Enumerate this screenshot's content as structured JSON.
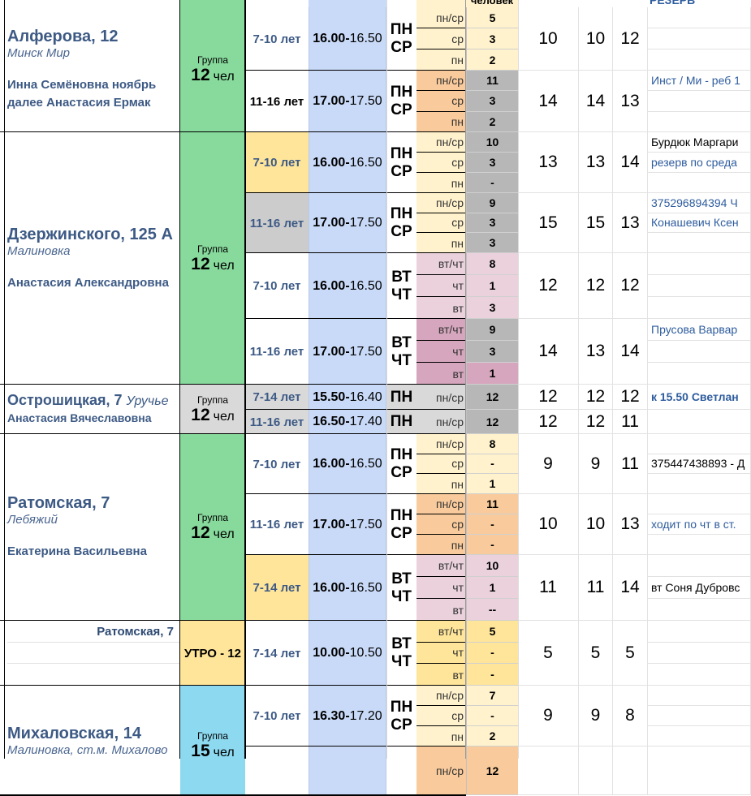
{
  "header": {
    "count_header": "человек",
    "reserve_header": "РЕЗЕРВ"
  },
  "group_label": "Группа",
  "people_suffix": "чел",
  "blocks": [
    {
      "title": "Алферова, 12",
      "title_extra": "",
      "subtitle": "Минск Мир",
      "teacher": [
        "Инна Семёновна ноябрь",
        "далее Анастасия Ермак"
      ],
      "group": {
        "type": "count",
        "size": "12",
        "color": "#87d99c"
      },
      "subgroups": [
        {
          "age": "7-10 лет",
          "age_bg": "#ffffff",
          "age_black": false,
          "time_start": "16.00-",
          "time_end": "16.50",
          "days": [
            "ПН",
            "СР"
          ],
          "rows": [
            {
              "label": "пн/ср",
              "count": "5"
            },
            {
              "label": "ср",
              "count": "3"
            },
            {
              "label": "пн",
              "count": "2"
            }
          ],
          "label_bg": "#fff2cc",
          "count_bg": [
            "#fff2cc",
            "#fff2cc",
            "#fff2cc"
          ],
          "totals": [
            "10",
            "10",
            "12"
          ],
          "notes": [
            "",
            "",
            ""
          ]
        },
        {
          "age": "11-16 лет",
          "age_bg": "#ffffff",
          "age_black": true,
          "time_start": "17.00-",
          "time_end": "17.50",
          "days": [
            "ПН",
            "СР"
          ],
          "rows": [
            {
              "label": "пн/ср",
              "count": "11"
            },
            {
              "label": "ср",
              "count": "3"
            },
            {
              "label": "пн",
              "count": "2"
            }
          ],
          "label_bg": "#f9cb9c",
          "count_bg": [
            "#b7b7b7",
            "#b7b7b7",
            "#b7b7b7"
          ],
          "totals": [
            "14",
            "14",
            "13"
          ],
          "notes": [
            "Инст / Ми - реб 1",
            "",
            ""
          ]
        }
      ]
    },
    {
      "title": "Дзержинского, 125 А",
      "title_extra": "",
      "subtitle": "Малиновка",
      "teacher": [
        "Анастасия Александровна"
      ],
      "group": {
        "type": "count",
        "size": "12",
        "color": "#87d99c"
      },
      "subgroups": [
        {
          "age": "7-10 лет",
          "age_bg": "#ffe599",
          "age_black": false,
          "time_start": "16.00-",
          "time_end": "16.50",
          "days": [
            "ПН",
            "СР"
          ],
          "rows": [
            {
              "label": "пн/ср",
              "count": "10"
            },
            {
              "label": "ср",
              "count": "3"
            },
            {
              "label": "пн",
              "count": "-"
            }
          ],
          "label_bg": "#fff2cc",
          "count_bg": [
            "#b7b7b7",
            "#b7b7b7",
            "#b7b7b7"
          ],
          "totals": [
            "13",
            "13",
            "14"
          ],
          "notes": [
            "Бурдюк Маргари",
            " резерв по среда",
            ""
          ]
        },
        {
          "age": "11-16 лет",
          "age_bg": "#cccccc",
          "age_black": false,
          "time_start": "17.00-",
          "time_end": "17.50",
          "days": [
            "ПН",
            "СР"
          ],
          "rows": [
            {
              "label": "пн/ср",
              "count": "9"
            },
            {
              "label": "ср",
              "count": "3"
            },
            {
              "label": "пн",
              "count": "3"
            }
          ],
          "label_bg": "#fff2cc",
          "count_bg": [
            "#b7b7b7",
            "#b7b7b7",
            "#b7b7b7"
          ],
          "totals": [
            "15",
            "15",
            "13"
          ],
          "notes": [
            "375296894394 Ч",
            "Конашевич Ксен",
            ""
          ]
        },
        {
          "age": "7-10 лет",
          "age_bg": "#ffffff",
          "age_black": false,
          "time_start": "16.00-",
          "time_end": "16.50",
          "days": [
            "ВТ",
            "ЧТ"
          ],
          "rows": [
            {
              "label": "вт/чт",
              "count": "8"
            },
            {
              "label": "чт",
              "count": "1"
            },
            {
              "label": "вт",
              "count": "3"
            }
          ],
          "label_bg": "#ead1dc",
          "count_bg": [
            "#ead1dc",
            "#ead1dc",
            "#ead1dc"
          ],
          "totals": [
            "12",
            "12",
            "12"
          ],
          "notes": [
            "",
            "",
            ""
          ]
        },
        {
          "age": "11-16 лет",
          "age_bg": "#ffffff",
          "age_black": false,
          "time_start": "17.00-",
          "time_end": "17.50",
          "days": [
            "ВТ",
            "ЧТ"
          ],
          "rows": [
            {
              "label": "вт/чт",
              "count": "9"
            },
            {
              "label": "чт",
              "count": "3"
            },
            {
              "label": "вт",
              "count": "1"
            }
          ],
          "label_bg": "#d5a6bd",
          "count_bg": [
            "#b7b7b7",
            "#b7b7b7",
            "#d5a6bd"
          ],
          "totals": [
            "14",
            "13",
            "14"
          ],
          "notes": [
            " Прусова Варвар",
            "",
            ""
          ]
        }
      ]
    },
    {
      "title": "Острошицкая, 7",
      "title_extra": "Уручье",
      "subtitle": "",
      "teacher": [
        "Анастасия Вячеславовна"
      ],
      "group": {
        "type": "count",
        "size": "12",
        "color": "#d9d9d9"
      },
      "subgroups": [
        {
          "age": "7-14 лет",
          "age_bg": "#d9d9d9",
          "age_black": false,
          "time_start": "15.50-",
          "time_end": "16.40",
          "days": [
            "ПН"
          ],
          "rows": [
            {
              "label": "пн/ср",
              "count": "12"
            }
          ],
          "label_bg": "#d9d9d9",
          "count_bg": [
            "#b7b7b7"
          ],
          "totals": [
            "12",
            "12",
            "12"
          ],
          "notes": [
            "к 15.50 Светлан"
          ],
          "note_bold": true
        },
        {
          "age": "11-16 лет",
          "age_bg": "#d9d9d9",
          "age_black": false,
          "time_start": "16.50-",
          "time_end": "17.40",
          "days": [
            "ПН"
          ],
          "rows": [
            {
              "label": "пн/ср",
              "count": "12"
            }
          ],
          "label_bg": "#d9d9d9",
          "count_bg": [
            "#b7b7b7"
          ],
          "totals": [
            "12",
            "12",
            "11"
          ],
          "notes": [
            ""
          ]
        }
      ]
    },
    {
      "title": "Ратомская, 7",
      "title_extra": "",
      "subtitle": "Лебяжий",
      "teacher": [
        "Екатерина Васильевна"
      ],
      "group": {
        "type": "count",
        "size": "12",
        "color": "#87d99c"
      },
      "subgroups": [
        {
          "age": "7-10 лет",
          "age_bg": "#ffffff",
          "age_black": false,
          "time_start": "16.00-",
          "time_end": "16.50",
          "days": [
            "ПН",
            "СР"
          ],
          "rows": [
            {
              "label": "пн/ср",
              "count": "8"
            },
            {
              "label": "ср",
              "count": "-"
            },
            {
              "label": "пн",
              "count": "1"
            }
          ],
          "label_bg": "#fff2cc",
          "count_bg": [
            "#fff2cc",
            "#fff2cc",
            "#fff2cc"
          ],
          "totals": [
            "9",
            "9",
            "11"
          ],
          "notes": [
            "",
            "375447438893 - Д",
            ""
          ],
          "note_black": true
        },
        {
          "age": "11-16 лет",
          "age_bg": "#ffffff",
          "age_black": false,
          "time_start": "17.00-",
          "time_end": "17.50",
          "days": [
            "ПН",
            "СР"
          ],
          "rows": [
            {
              "label": "пн/ср",
              "count": "11"
            },
            {
              "label": "ср",
              "count": "-"
            },
            {
              "label": "пн",
              "count": "-"
            }
          ],
          "label_bg": "#f9cb9c",
          "count_bg": [
            "#f9cb9c",
            "#f9cb9c",
            "#f9cb9c"
          ],
          "totals": [
            "10",
            "10",
            "13"
          ],
          "notes": [
            "",
            "ходит по чт в ст.",
            ""
          ]
        },
        {
          "age": "7-14 лет",
          "age_bg": "#ffe599",
          "age_black": false,
          "time_start": "16.00-",
          "time_end": "16.50",
          "days": [
            "ВТ",
            "ЧТ"
          ],
          "rows": [
            {
              "label": "вт/чт",
              "count": "10"
            },
            {
              "label": "чт",
              "count": "1"
            },
            {
              "label": "вт",
              "count": "--"
            }
          ],
          "label_bg": "#ead1dc",
          "count_bg": [
            "#ead1dc",
            "#ead1dc",
            "#ead1dc"
          ],
          "totals": [
            "11",
            "11",
            "14"
          ],
          "notes": [
            "",
            "вт Соня Дубровс",
            ""
          ],
          "note_black": true
        }
      ]
    },
    {
      "title": "",
      "title_extra": "",
      "subtitle": "",
      "teacher": [],
      "morning_title": "Ратомская, 7",
      "group": {
        "type": "morning",
        "label": "УТРО - 12",
        "color": "#ffe599"
      },
      "subgroups": [
        {
          "age": "7-14 лет",
          "age_bg": "#ffffff",
          "age_black": false,
          "time_start": "10.00-",
          "time_end": "10.50",
          "days": [
            "ВТ",
            "ЧТ"
          ],
          "rows": [
            {
              "label": "вт/чт",
              "count": "5"
            },
            {
              "label": "чт",
              "count": "-"
            },
            {
              "label": "вт",
              "count": "-"
            }
          ],
          "label_bg": "#ffe599",
          "count_bg": [
            "#ffe599",
            "#ffe599",
            "#ffe599"
          ],
          "totals": [
            "5",
            "5",
            "5"
          ],
          "notes": [
            "",
            "",
            ""
          ]
        }
      ]
    },
    {
      "title": "Михаловская, 14",
      "title_extra": "",
      "subtitle": "Малиновка, ст.м. Михалово",
      "teacher": [],
      "group": {
        "type": "count",
        "size": "15",
        "color": "#8dd9f0"
      },
      "subgroups": [
        {
          "age": "7-10 лет",
          "age_bg": "#ffffff",
          "age_black": false,
          "time_start": "16.30-",
          "time_end": "17.20",
          "days": [
            "ПН",
            "СР"
          ],
          "rows": [
            {
              "label": "пн/ср",
              "count": "7"
            },
            {
              "label": "ср",
              "count": "-"
            },
            {
              "label": "пн",
              "count": "2"
            }
          ],
          "label_bg": "#fff2cc",
          "count_bg": [
            "#fff2cc",
            "#fff2cc",
            "#fff2cc"
          ],
          "totals": [
            "9",
            "9",
            "8"
          ],
          "notes": [
            "",
            "",
            ""
          ]
        },
        {
          "age": "",
          "age_bg": "#ffffff",
          "age_black": false,
          "time_start": "",
          "time_end": "",
          "days": [],
          "rows": [
            {
              "label": "пн/ср",
              "count": "12"
            }
          ],
          "label_bg": "#f9cb9c",
          "count_bg": [
            "#f9cb9c"
          ],
          "totals": [
            "",
            "",
            ""
          ],
          "notes": [
            ""
          ]
        }
      ]
    }
  ]
}
